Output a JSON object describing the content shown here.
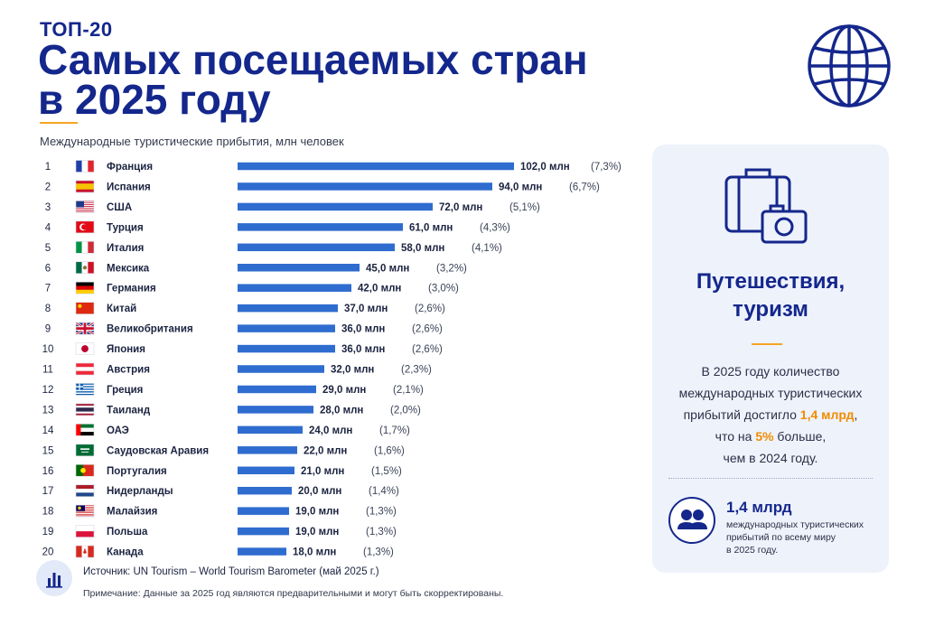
{
  "header": {
    "eyebrow": "ТОП-20",
    "title_line1": "Самых посещаемых стран",
    "title_line2": "в 2025 году",
    "subtitle": "Международные туристические прибытия, млн человек"
  },
  "icons": {
    "globe": "globe-icon",
    "travel": "suitcase-camera-icon",
    "people": "people-icon",
    "source": "bar-chart-icon"
  },
  "colors": {
    "bar": "#2f6ccf",
    "title": "#14278c",
    "accent": "#f5a623",
    "highlight": "#f08c00",
    "panel_bg": "#eef2fb"
  },
  "chart_data": {
    "type": "bar",
    "orientation": "horizontal",
    "unit_suffix": "млн",
    "xlim": [
      0,
      102
    ],
    "grid": false,
    "categories": [
      "Франция",
      "Испания",
      "США",
      "Турция",
      "Италия",
      "Мексика",
      "Германия",
      "Китай",
      "Великобритания",
      "Япония",
      "Австрия",
      "Греция",
      "Таиланд",
      "ОАЭ",
      "Саудовская Аравия",
      "Португалия",
      "Нидерланды",
      "Малайзия",
      "Польша",
      "Канада"
    ],
    "ranks": [
      "1",
      "2",
      "3",
      "4",
      "5",
      "6",
      "7",
      "8",
      "9",
      "10",
      "11",
      "12",
      "13",
      "14",
      "15",
      "16",
      "17",
      "18",
      "19",
      "20"
    ],
    "values": [
      102.0,
      94.0,
      72.0,
      61.0,
      58.0,
      45.0,
      42.0,
      37.0,
      36.0,
      36.0,
      32.0,
      29.0,
      28.0,
      24.0,
      22.0,
      21.0,
      20.0,
      19.0,
      19.0,
      18.0
    ],
    "value_labels": [
      "102,0 млн",
      "94,0 млн",
      "72,0 млн",
      "61,0 млн",
      "58,0 млн",
      "45,0 млн",
      "42,0 млн",
      "37,0 млн",
      "36,0 млн",
      "36,0 млн",
      "32,0 млн",
      "29,0 млн",
      "28,0 млн",
      "24,0 млн",
      "22,0 млн",
      "21,0 млн",
      "20,0 млн",
      "19,0 млн",
      "19,0 млн",
      "18,0 млн"
    ],
    "shares": [
      "(7,3%)",
      "(6,7%)",
      "(5,1%)",
      "(4,3%)",
      "(4,1%)",
      "(3,2%)",
      "(3,0%)",
      "(2,6%)",
      "(2,6%)",
      "(2,6%)",
      "(2,3%)",
      "(2,1%)",
      "(2,0%)",
      "(1,7%)",
      "(1,6%)",
      "(1,5%)",
      "(1,4%)",
      "(1,3%)",
      "(1,3%)",
      "(1,3%)"
    ],
    "flags": [
      "flag-france-icon",
      "flag-spain-icon",
      "flag-usa-icon",
      "flag-turkey-icon",
      "flag-italy-icon",
      "flag-mexico-icon",
      "flag-germany-icon",
      "flag-china-icon",
      "flag-uk-icon",
      "flag-japan-icon",
      "flag-austria-icon",
      "flag-greece-icon",
      "flag-thailand-icon",
      "flag-uae-icon",
      "flag-saudi-arabia-icon",
      "flag-portugal-icon",
      "flag-netherlands-icon",
      "flag-malaysia-icon",
      "flag-poland-icon",
      "flag-canada-icon"
    ]
  },
  "panel": {
    "title_line1": "Путешествия,",
    "title_line2": "туризм",
    "text_line1": "В 2025 году количество",
    "text_line2": "международных туристических",
    "text_line3_pre": "прибытий достигло ",
    "text_line3_hl": "1,4 млрд",
    "text_line3_post": ",",
    "text_line4_pre": "что на ",
    "text_line4_hl": "5%",
    "text_line4_post": " больше,",
    "text_line5": "чем в 2024 году.",
    "stat_value": "1,4 млрд",
    "stat_caption_line1": "международных туристических",
    "stat_caption_line2": "прибытий по всему миру",
    "stat_caption_line3": "в 2025 году."
  },
  "footer": {
    "source": "Источник: UN Tourism – World Tourism Barometer (май 2025 г.)",
    "note": "Примечание: Данные за 2025 год являются предварительными и могут быть скорректированы."
  }
}
